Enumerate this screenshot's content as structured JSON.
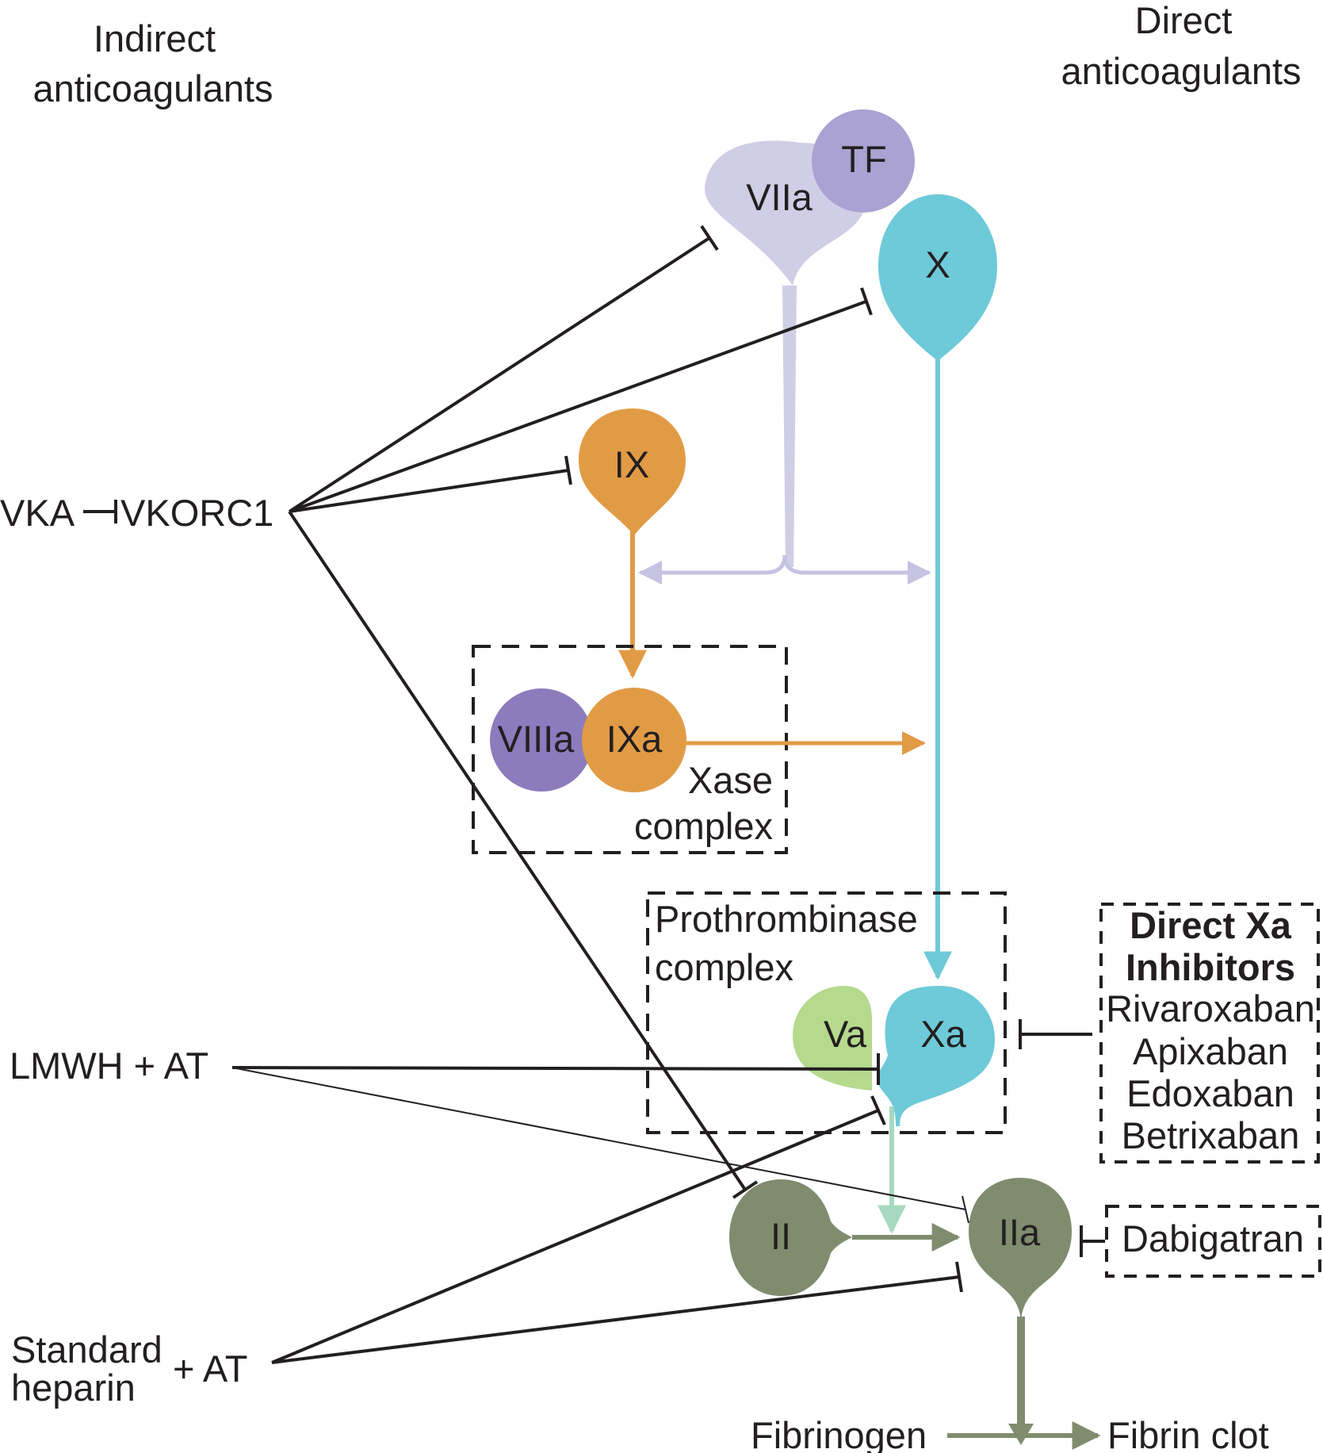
{
  "headers": {
    "indirect": [
      "Indirect",
      "anticoagulants"
    ],
    "direct": [
      "Direct",
      "anticoagulants"
    ]
  },
  "nodes": {
    "tf": "TF",
    "viia": "VIIa",
    "x": "X",
    "ix": "IX",
    "viiia": "VIIIa",
    "ixa": "IXa",
    "va": "Va",
    "xa": "Xa",
    "ii": "II",
    "iia": "IIa"
  },
  "complexes": {
    "xase": [
      "Xase",
      "complex"
    ],
    "prothrombinase": [
      "Prothrombinase",
      "complex"
    ]
  },
  "drugs": {
    "vka": "VKA",
    "vkorc1": "VKORC1",
    "lmwh": "LMWH + AT",
    "heparin": [
      "Standard",
      "heparin"
    ],
    "heparin_at": "+ AT",
    "direct_xa": {
      "title": [
        "Direct Xa",
        "Inhibitors"
      ],
      "items": [
        "Rivaroxaban",
        "Apixaban",
        "Edoxaban",
        "Betrixaban"
      ]
    },
    "dabigatran": "Dabigatran"
  },
  "end_products": {
    "fibrinogen": "Fibrinogen",
    "fibrin": "Fibrin clot"
  },
  "colors": {
    "viia": "#d0cde6",
    "tf": "#a9a2d2",
    "viiia": "#8c7bbd",
    "x": "#6ecad8",
    "ix": "#e29b45",
    "va": "#b5d98d",
    "thrombin": "#7f8c6e",
    "line": "#231f20"
  }
}
